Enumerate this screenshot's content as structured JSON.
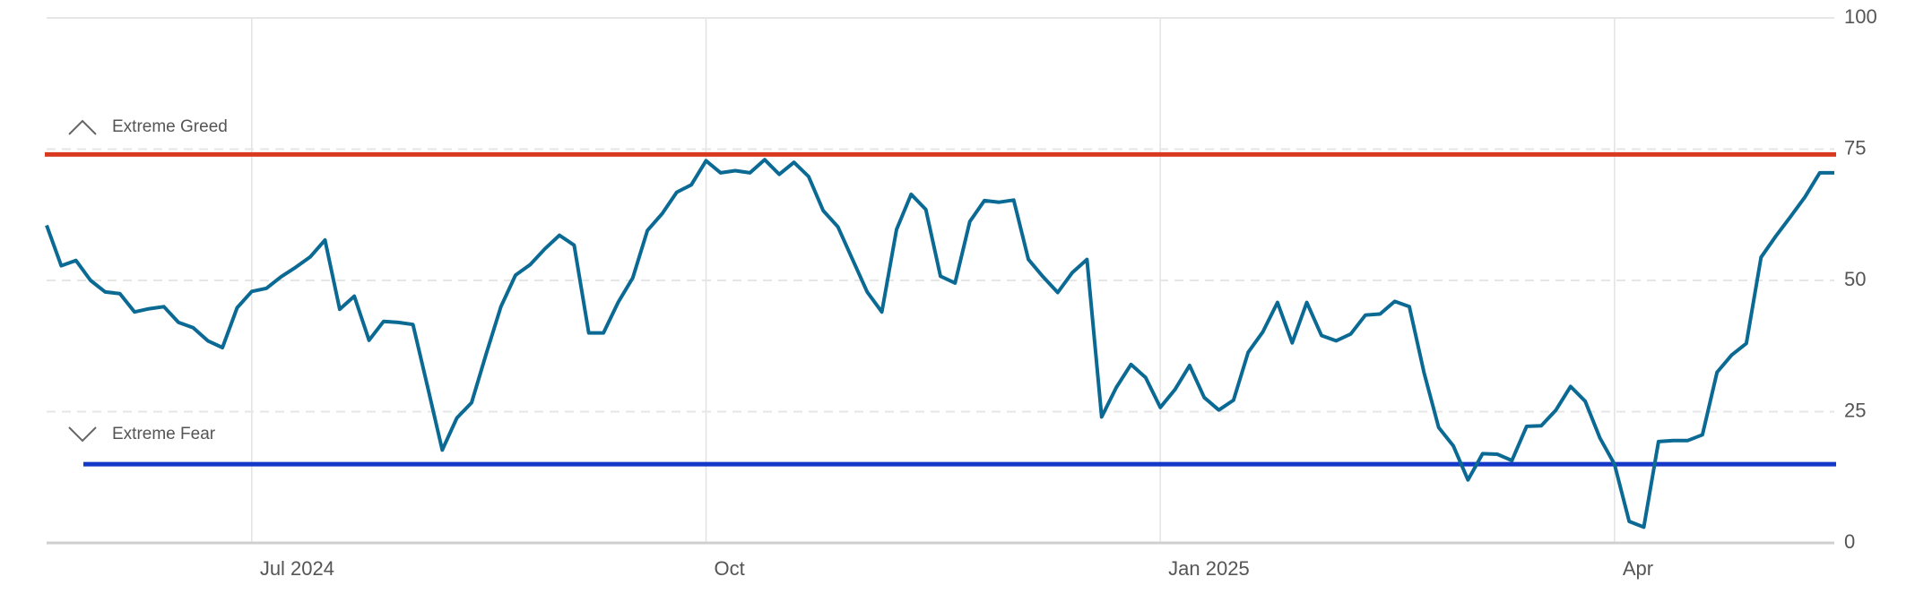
{
  "chart_data": {
    "type": "line",
    "categories": [
      null,
      null,
      null,
      null,
      null,
      null,
      null,
      null,
      null,
      null,
      null,
      null,
      null,
      null,
      "Jul 2024",
      null,
      null,
      null,
      null,
      null,
      null,
      null,
      null,
      null,
      null,
      null,
      null,
      null,
      null,
      null,
      null,
      null,
      null,
      null,
      null,
      null,
      null,
      null,
      null,
      null,
      null,
      null,
      null,
      null,
      null,
      "Oct",
      null,
      null,
      null,
      null,
      null,
      null,
      null,
      null,
      null,
      null,
      null,
      null,
      null,
      null,
      null,
      null,
      null,
      null,
      null,
      null,
      null,
      null,
      null,
      null,
      null,
      null,
      null,
      null,
      null,
      null,
      "Jan 2025",
      null,
      null,
      null,
      null,
      null,
      null,
      null,
      null,
      null,
      null,
      null,
      null,
      null,
      null,
      null,
      null,
      null,
      null,
      null,
      null,
      null,
      null,
      null,
      null,
      null,
      null,
      null,
      null,
      null,
      null,
      "Apr",
      null,
      null,
      null,
      null,
      null,
      null,
      null,
      null,
      null,
      null,
      null,
      null,
      null,
      null,
      null
    ],
    "values": [
      60.5,
      52.8,
      53.8,
      50,
      47.8,
      47.5,
      44,
      44.6,
      45,
      42,
      41,
      38.5,
      37.2,
      44.8,
      47.9,
      48.5,
      50.7,
      52.5,
      54.5,
      57.7,
      44.5,
      47,
      38.6,
      42.2,
      42,
      41.6,
      29.7,
      17.7,
      23.8,
      26.7,
      36,
      45,
      51,
      53,
      56,
      58.6,
      56.7,
      40,
      40,
      45.8,
      50.5,
      59.5,
      62.7,
      66.8,
      68.2,
      72.8,
      70.5,
      70.9,
      70.5,
      73,
      70.2,
      72.5,
      69.8,
      63.3,
      60.2,
      54,
      47.8,
      44,
      59.7,
      66.4,
      63.5,
      50.8,
      49.5,
      61.2,
      65.2,
      64.9,
      65.3,
      54,
      50.7,
      47.7,
      51.5,
      54,
      24,
      29.6,
      34,
      31.5,
      25.8,
      29.2,
      33.8,
      27.7,
      25.3,
      27.2,
      36.3,
      40.2,
      45.8,
      38.1,
      45.8,
      39.5,
      38.5,
      39.8,
      43.4,
      43.6,
      46,
      45,
      32.4,
      22,
      18.5,
      12,
      17,
      16.9,
      15.7,
      22.2,
      22.3,
      25.3,
      29.8,
      27,
      20,
      15,
      4.1,
      3,
      19.3,
      19.5,
      19.5,
      20.6,
      32.5,
      35.8,
      38,
      54.4,
      58.4,
      62.1,
      65.9,
      70.5,
      70.5
    ],
    "color": "#0b6a94",
    "ylim": [
      0,
      100
    ],
    "yticks": [
      0,
      25,
      50,
      75,
      100
    ],
    "grid": true,
    "annotations": [
      {
        "label": "Extreme Greed",
        "value": 74,
        "color": "#d93a1f",
        "direction": "up"
      },
      {
        "label": "Extreme Fear",
        "value": 15,
        "color": "#1438c8",
        "direction": "down"
      }
    ]
  }
}
